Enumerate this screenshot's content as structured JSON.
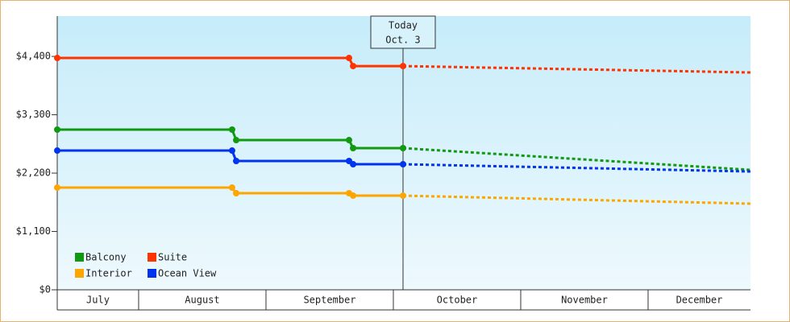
{
  "chart_data": {
    "type": "line",
    "xlim": [
      7.361,
      12.804
    ],
    "xticks": [
      {
        "value": 7,
        "label": "July"
      },
      {
        "value": 8,
        "label": "August"
      },
      {
        "value": 9,
        "label": "September"
      },
      {
        "value": 10,
        "label": "October"
      },
      {
        "value": 11,
        "label": "November"
      },
      {
        "value": 12,
        "label": "December"
      }
    ],
    "ylim": [
      0,
      5160
    ],
    "yticks": [
      {
        "value": 0,
        "label": "$0"
      },
      {
        "value": 1100,
        "label": "$1,100"
      },
      {
        "value": 2200,
        "label": "$2,200"
      },
      {
        "value": 3300,
        "label": "$3,300"
      },
      {
        "value": 4400,
        "label": "$4,400"
      }
    ],
    "annotation": {
      "x": 10.076,
      "lines": [
        "Today",
        "Oct. 3"
      ]
    },
    "legend": "lower left",
    "series": [
      {
        "name": "Balcony",
        "color": "#119911",
        "x": [
          7.361,
          8.734,
          8.766,
          9.652,
          9.684,
          10.076
        ],
        "values": [
          3020,
          3020,
          2822,
          2822,
          2671,
          2671
        ],
        "forecast_x": [
          10.076,
          12.804
        ],
        "forecast_values": [
          2671,
          2261
        ]
      },
      {
        "name": "Suite",
        "color": "#ff3300",
        "x": [
          7.361,
          9.652,
          9.684,
          10.076
        ],
        "values": [
          4370,
          4370,
          4218,
          4218
        ],
        "forecast_x": [
          10.076,
          12.804
        ],
        "forecast_values": [
          4218,
          4097
        ]
      },
      {
        "name": "Interior",
        "color": "#ffa500",
        "x": [
          7.361,
          8.734,
          8.766,
          9.652,
          9.684,
          10.076
        ],
        "values": [
          1927,
          1927,
          1821,
          1821,
          1775,
          1775
        ],
        "forecast_x": [
          10.076,
          12.804
        ],
        "forecast_values": [
          1775,
          1624
        ]
      },
      {
        "name": "Ocean View",
        "color": "#0033ee",
        "x": [
          7.361,
          8.734,
          8.766,
          9.652,
          9.684,
          10.076
        ],
        "values": [
          2625,
          2625,
          2428,
          2428,
          2367,
          2367
        ],
        "forecast_x": [
          10.076,
          12.804
        ],
        "forecast_values": [
          2367,
          2230
        ]
      }
    ]
  }
}
